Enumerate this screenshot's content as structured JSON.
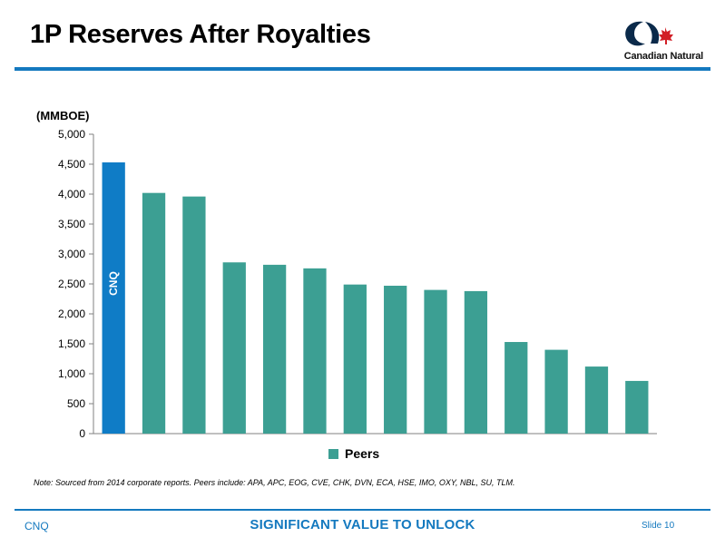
{
  "slide": {
    "title": "1P Reserves After Royalties",
    "logo_text": "Canadian Natural",
    "note": "Note: Sourced from 2014 corporate reports. Peers include: APA, APC, EOG, CVE, CHK, DVN, ECA, HSE, IMO, OXY, NBL, SU, TLM.",
    "footer_left": "CNQ",
    "footer_center": "SIGNIFICANT VALUE TO UNLOCK",
    "footer_right": "Slide 10"
  },
  "colors": {
    "accent": "#1479bf",
    "cnq_bar": "#0f7cc6",
    "peer_bar": "#3c9f93"
  },
  "chart_data": {
    "type": "bar",
    "ylabel": "(MMBOE)",
    "ylim": [
      0,
      5000
    ],
    "yticks": [
      "0",
      "500",
      "1,000",
      "1,500",
      "2,000",
      "2,500",
      "3,000",
      "3,500",
      "4,000",
      "4,500",
      "5,000"
    ],
    "legend": "Peers",
    "legend_position": "bottom",
    "highlight_label": "CNQ",
    "grid": false,
    "values": [
      4530,
      4020,
      3960,
      2860,
      2820,
      2760,
      2490,
      2470,
      2400,
      2380,
      1530,
      1400,
      1120,
      880
    ]
  }
}
